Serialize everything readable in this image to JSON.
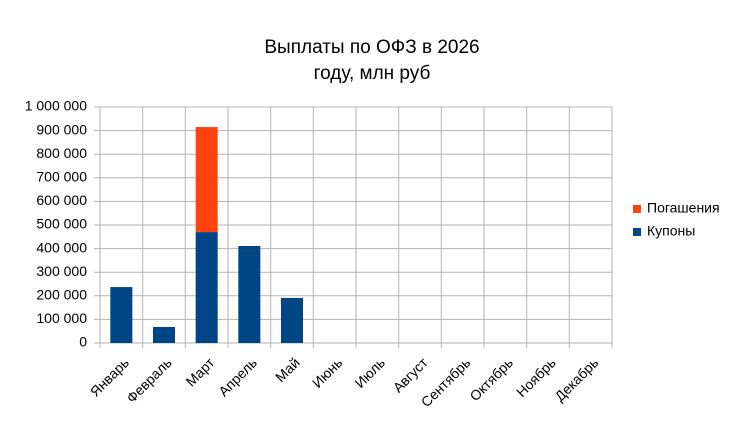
{
  "chart_data": {
    "type": "bar",
    "stacked": true,
    "title": "Выплаты по ОФЗ в 2026 году, млн руб",
    "categories": [
      "Январь",
      "Февраль",
      "Март",
      "Апрель",
      "Май",
      "Июнь",
      "Июль",
      "Август",
      "Сентябрь",
      "Октябрь",
      "Ноябрь",
      "Декабрь"
    ],
    "series": [
      {
        "name": "Купоны",
        "color": "#004586",
        "values": [
          237000,
          68000,
          470000,
          411000,
          191000,
          0,
          0,
          0,
          0,
          0,
          0,
          0
        ]
      },
      {
        "name": "Погашения",
        "color": "#ff420e",
        "values": [
          0,
          0,
          445000,
          0,
          0,
          0,
          0,
          0,
          0,
          0,
          0,
          0
        ]
      }
    ],
    "ylim": [
      0,
      1000000
    ],
    "yticks": [
      0,
      {
        "value": 100000,
        "label": "100 000"
      },
      {
        "value": 200000,
        "label": "200 000"
      },
      {
        "value": 300000,
        "label": "300 000"
      },
      {
        "value": 400000,
        "label": "400 000"
      },
      {
        "value": 500000,
        "label": "500 000"
      },
      {
        "value": 600000,
        "label": "600 000"
      },
      {
        "value": 700000,
        "label": "700 000"
      },
      {
        "value": 800000,
        "label": "800 000"
      },
      {
        "value": 900000,
        "label": "900 000"
      },
      {
        "value": 1000000,
        "label": "1 000 000"
      }
    ],
    "grid": true,
    "legend": "right"
  }
}
